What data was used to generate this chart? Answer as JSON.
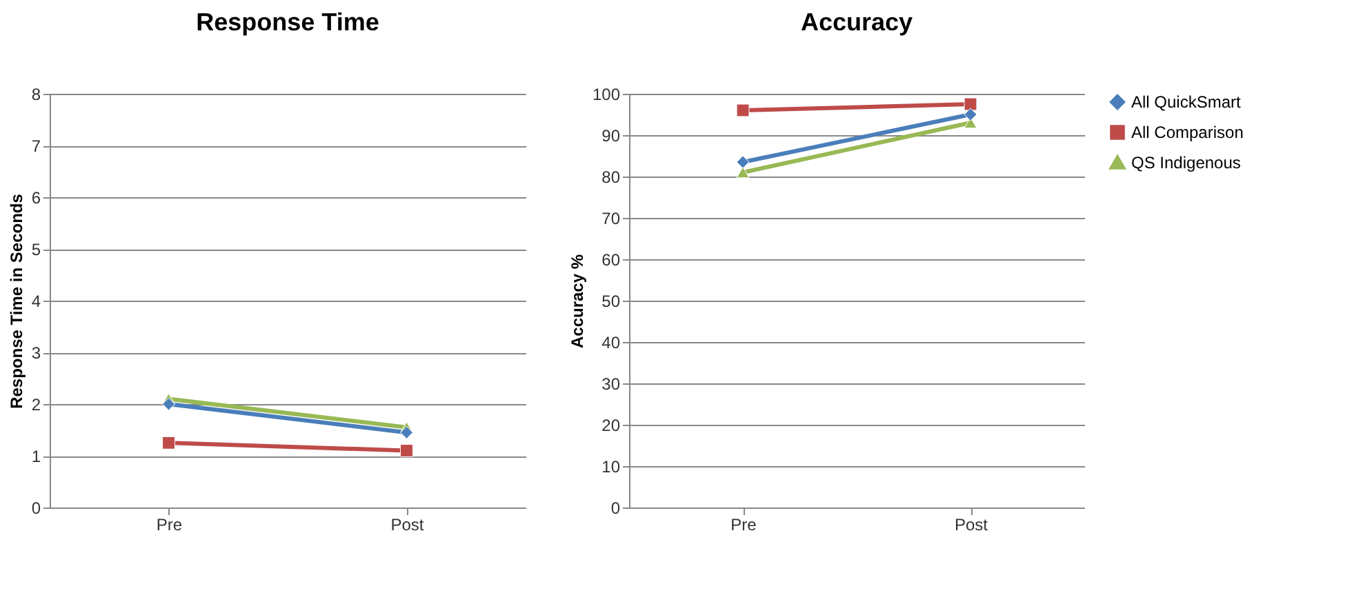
{
  "chart_data": [
    {
      "type": "line",
      "title": "Response Time",
      "ylabel": "Response Time in Seconds",
      "categories": [
        "Pre",
        "Post"
      ],
      "ylim": [
        0,
        8
      ],
      "yticks": [
        0,
        1,
        2,
        3,
        4,
        5,
        6,
        7,
        8
      ],
      "grid": "y",
      "legend": false,
      "series": [
        {
          "color": "#4a7ebb",
          "marker": "diamond",
          "values": [
            2.0,
            1.45
          ]
        },
        {
          "color": "#be4b48",
          "marker": "square",
          "values": [
            1.25,
            1.1
          ]
        },
        {
          "color": "#98b954",
          "marker": "triangle",
          "values": [
            2.1,
            1.55
          ]
        }
      ]
    },
    {
      "type": "line",
      "title": "Accuracy",
      "ylabel": "Accuracy %",
      "categories": [
        "Pre",
        "Post"
      ],
      "ylim": [
        0,
        100
      ],
      "yticks": [
        0,
        10,
        20,
        30,
        40,
        50,
        60,
        70,
        80,
        90,
        100
      ],
      "grid": "y",
      "legend": "right",
      "series": [
        {
          "name": "All QuickSmart",
          "color": "#4a7ebb",
          "marker": "diamond",
          "values": [
            83.5,
            95
          ]
        },
        {
          "name": "All Comparison",
          "color": "#be4b48",
          "marker": "square",
          "values": [
            96,
            97.5
          ]
        },
        {
          "name": "QS Indigenous",
          "color": "#98b954",
          "marker": "triangle",
          "values": [
            81,
            93
          ]
        }
      ]
    }
  ]
}
